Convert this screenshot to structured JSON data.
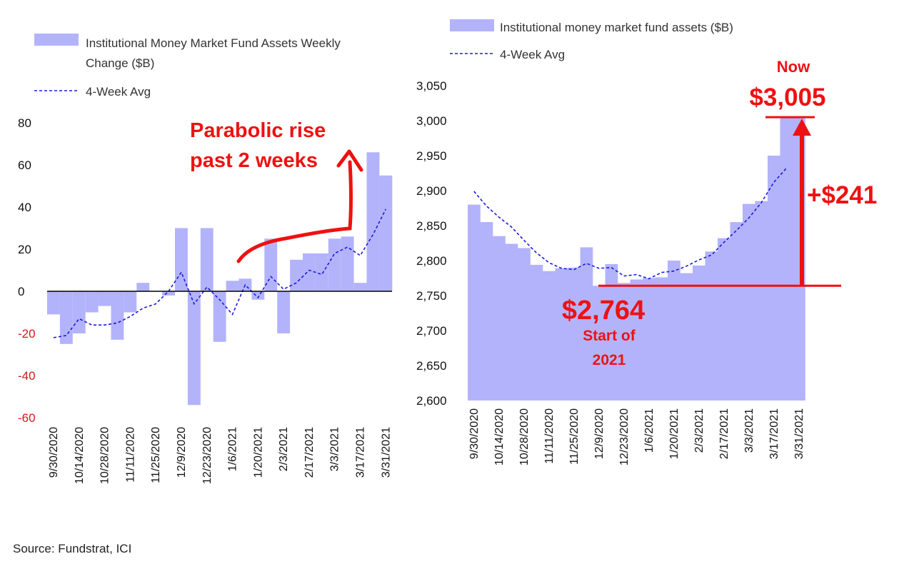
{
  "source": "Source: Fundstrat,  ICI",
  "colors": {
    "bar": "#b3b3fb",
    "avg_line": "#1a1ae0",
    "annotation": "#ee1111",
    "negative_tick": "#d11a1a"
  },
  "chart_data": [
    {
      "type": "bar",
      "series": [
        {
          "name": "Institutional Money Market Fund Assets Weekly Change ($B)",
          "values": [
            -11,
            -25,
            -20,
            -10,
            -7,
            -23,
            -10,
            4,
            0,
            -2,
            30,
            -54,
            30,
            -24,
            5,
            6,
            -4,
            25,
            -20,
            15,
            18,
            18,
            25,
            26,
            4,
            66,
            55
          ]
        },
        {
          "name": "4-Week Avg",
          "type": "line",
          "values": [
            -22,
            -21,
            -13,
            -16,
            -16,
            -15,
            -12,
            -8,
            -6,
            0,
            9,
            -6,
            2,
            -4,
            -11,
            3,
            -3,
            7,
            1,
            4,
            10,
            8,
            18,
            21,
            17,
            27,
            39
          ]
        }
      ],
      "legend": [
        "Institutional Money Market Fund Assets Weekly",
        "Change ($B)",
        "4-Week Avg"
      ],
      "ylim": [
        -60,
        80
      ],
      "yticks": [
        80,
        60,
        40,
        20,
        0,
        -20,
        -40,
        -60
      ],
      "xtick_labels": [
        "9/30/2020",
        "10/14/2020",
        "10/28/2020",
        "11/11/2020",
        "11/25/2020",
        "12/9/2020",
        "12/23/2020",
        "1/6/2021",
        "1/20/2021",
        "2/3/2021",
        "2/17/2021",
        "3/3/2021",
        "3/17/2021",
        "3/31/2021"
      ],
      "annotations": [
        "Parabolic rise",
        "past 2 weeks"
      ]
    },
    {
      "type": "area",
      "series": [
        {
          "name": "Institutional money market fund assets ($B)",
          "values": [
            2880,
            2855,
            2835,
            2824,
            2818,
            2794,
            2785,
            2789,
            2790,
            2819,
            2764,
            2795,
            2768,
            2773,
            2775,
            2776,
            2800,
            2782,
            2793,
            2813,
            2832,
            2855,
            2881,
            2885,
            2950,
            3005,
            3005
          ]
        },
        {
          "name": "4-Week Avg",
          "type": "line",
          "values": [
            2899,
            2878,
            2862,
            2848,
            2829,
            2811,
            2797,
            2789,
            2787,
            2796,
            2789,
            2790,
            2778,
            2780,
            2774,
            2783,
            2785,
            2792,
            2801,
            2808,
            2826,
            2843,
            2861,
            2883,
            2912,
            2932
          ]
        }
      ],
      "legend": [
        "Institutional money market fund assets ($B)",
        "4-Week Avg"
      ],
      "ylim": [
        2600,
        3050
      ],
      "yticks": [
        "3,050",
        "3,000",
        "2,950",
        "2,900",
        "2,850",
        "2,800",
        "2,750",
        "2,700",
        "2,650",
        "2,600"
      ],
      "xtick_labels": [
        "9/30/2020",
        "10/14/2020",
        "10/28/2020",
        "11/11/2020",
        "11/25/2020",
        "12/9/2020",
        "12/23/2020",
        "1/6/2021",
        "1/20/2021",
        "2/3/2021",
        "2/17/2021",
        "3/3/2021",
        "3/17/2021",
        "3/31/2021"
      ],
      "annotations": {
        "now_label": "Now",
        "now_value": "$3,005",
        "change": "+$241",
        "start_value": "$2,764",
        "start_label_1": "Start of",
        "start_label_2": "2021",
        "start_level": 2764,
        "now_level": 3005
      }
    }
  ]
}
